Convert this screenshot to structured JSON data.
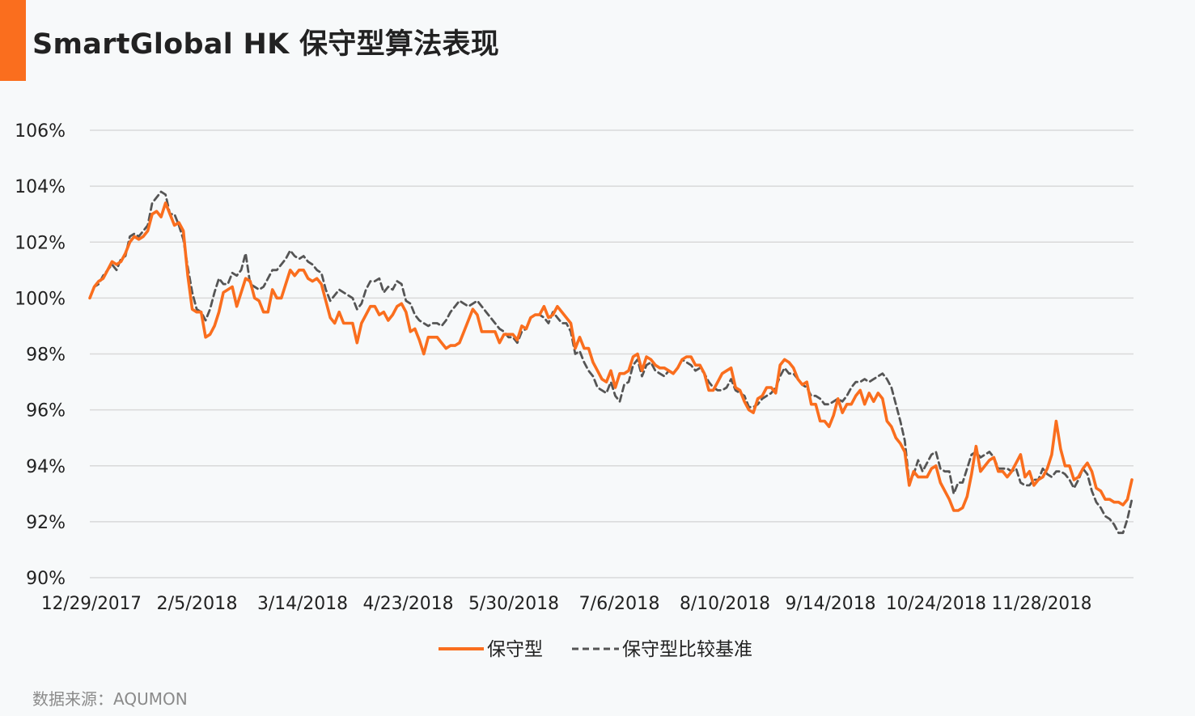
{
  "title": "SmartGlobal HK 保守型算法表现",
  "source": "数据来源：AQUMON",
  "colors": {
    "accent": "#fa6e1e",
    "primary": "#fa6e1e",
    "benchmark": "#555555",
    "grid": "#d9d9d9",
    "text": "#222222"
  },
  "chart_data": {
    "type": "line",
    "title": "SmartGlobal HK 保守型算法表现",
    "ylim": [
      90,
      106
    ],
    "y_ticks": [
      "106%",
      "104%",
      "102%",
      "100%",
      "98%",
      "96%",
      "94%",
      "92%",
      "90%"
    ],
    "x_ticks": [
      "12/29/2017",
      "2/5/2018",
      "3/14/2018",
      "4/23/2018",
      "5/30/2018",
      "7/6/2018",
      "8/10/2018",
      "9/14/2018",
      "10/24/2018",
      "11/28/2018"
    ],
    "grid": true,
    "legend_position": "bottom",
    "series": [
      {
        "name": "保守型",
        "style": "solid",
        "values": [
          100.0,
          100.4,
          100.6,
          100.7,
          101.0,
          101.3,
          101.2,
          101.3,
          101.6,
          102.0,
          102.2,
          102.1,
          102.2,
          102.4,
          103.0,
          103.1,
          102.9,
          103.4,
          103.0,
          102.6,
          102.7,
          102.4,
          100.8,
          99.6,
          99.5,
          99.5,
          98.6,
          98.7,
          99.0,
          99.5,
          100.2,
          100.3,
          100.4,
          99.7,
          100.2,
          100.7,
          100.6,
          100.0,
          99.9,
          99.5,
          99.5,
          100.3,
          100.0,
          100.0,
          100.5,
          101.0,
          100.8,
          101.0,
          101.0,
          100.7,
          100.6,
          100.7,
          100.5,
          99.9,
          99.3,
          99.1,
          99.5,
          99.1,
          99.1,
          99.1,
          98.4,
          99.1,
          99.4,
          99.7,
          99.7,
          99.4,
          99.5,
          99.2,
          99.4,
          99.7,
          99.8,
          99.5,
          98.8,
          98.9,
          98.5,
          98.0,
          98.6,
          98.6,
          98.6,
          98.4,
          98.2,
          98.3,
          98.3,
          98.4,
          98.8,
          99.2,
          99.6,
          99.4,
          98.8,
          98.8,
          98.8,
          98.8,
          98.4,
          98.7,
          98.7,
          98.7,
          98.5,
          99.0,
          98.9,
          99.3,
          99.4,
          99.4,
          99.7,
          99.3,
          99.4,
          99.7,
          99.5,
          99.3,
          99.1,
          98.2,
          98.6,
          98.2,
          98.2,
          97.7,
          97.4,
          97.1,
          97.0,
          97.4,
          96.8,
          97.3,
          97.3,
          97.4,
          97.9,
          98.0,
          97.4,
          97.9,
          97.8,
          97.6,
          97.5,
          97.5,
          97.4,
          97.3,
          97.5,
          97.8,
          97.9,
          97.9,
          97.6,
          97.6,
          97.3,
          96.7,
          96.7,
          97.0,
          97.3,
          97.4,
          97.5,
          96.8,
          96.7,
          96.3,
          96.0,
          95.9,
          96.4,
          96.5,
          96.8,
          96.8,
          96.6,
          97.6,
          97.8,
          97.7,
          97.5,
          97.1,
          96.9,
          97.0,
          96.2,
          96.2,
          95.6,
          95.6,
          95.4,
          95.8,
          96.4,
          95.9,
          96.2,
          96.2,
          96.5,
          96.7,
          96.2,
          96.6,
          96.3,
          96.6,
          96.4,
          95.6,
          95.4,
          95.0,
          94.8,
          94.5,
          93.3,
          93.8,
          93.6,
          93.6,
          93.6,
          93.9,
          94.0,
          93.4,
          93.1,
          92.8,
          92.4,
          92.4,
          92.5,
          92.9,
          93.7,
          94.7,
          93.8,
          94.0,
          94.2,
          94.3,
          93.8,
          93.8,
          93.6,
          93.8,
          94.1,
          94.4,
          93.6,
          93.8,
          93.3,
          93.5,
          93.6,
          93.9,
          94.4,
          95.6,
          94.6,
          94.0,
          94.0,
          93.5,
          93.6,
          93.9,
          94.1,
          93.8,
          93.2,
          93.1,
          92.8,
          92.8,
          92.7,
          92.7,
          92.6,
          92.8,
          93.5
        ]
      },
      {
        "name": "保守型比较基准",
        "style": "dashed",
        "values": [
          100.0,
          100.4,
          100.5,
          100.8,
          101.0,
          101.2,
          101.0,
          101.4,
          101.5,
          102.2,
          102.3,
          102.2,
          102.4,
          102.6,
          103.4,
          103.6,
          103.8,
          103.7,
          103.0,
          103.0,
          102.6,
          102.1,
          101.1,
          100.2,
          99.6,
          99.5,
          99.2,
          99.6,
          100.2,
          100.7,
          100.5,
          100.5,
          100.9,
          100.8,
          101.0,
          101.6,
          100.5,
          100.4,
          100.3,
          100.4,
          100.7,
          101.0,
          101.0,
          101.2,
          101.4,
          101.7,
          101.5,
          101.4,
          101.5,
          101.3,
          101.2,
          101.0,
          100.9,
          100.3,
          99.9,
          100.1,
          100.3,
          100.2,
          100.1,
          100.0,
          99.6,
          99.8,
          100.3,
          100.6,
          100.6,
          100.7,
          100.2,
          100.4,
          100.3,
          100.6,
          100.5,
          99.9,
          99.8,
          99.4,
          99.2,
          99.1,
          99.0,
          99.1,
          99.1,
          99.0,
          99.2,
          99.5,
          99.7,
          99.9,
          99.8,
          99.7,
          99.8,
          99.9,
          99.7,
          99.5,
          99.3,
          99.1,
          98.9,
          98.8,
          98.6,
          98.6,
          98.4,
          98.8,
          98.9,
          99.3,
          99.4,
          99.4,
          99.3,
          99.1,
          99.5,
          99.3,
          99.1,
          99.1,
          98.8,
          98.0,
          98.1,
          97.7,
          97.4,
          97.2,
          96.8,
          96.7,
          96.6,
          97.0,
          96.5,
          96.3,
          96.9,
          97.0,
          97.6,
          97.8,
          97.2,
          97.6,
          97.7,
          97.4,
          97.3,
          97.2,
          97.4,
          97.3,
          97.5,
          97.8,
          97.7,
          97.6,
          97.4,
          97.5,
          97.3,
          97.0,
          96.8,
          96.7,
          96.7,
          96.8,
          97.1,
          96.7,
          96.6,
          96.5,
          96.1,
          96.1,
          96.2,
          96.4,
          96.5,
          96.6,
          96.8,
          97.2,
          97.5,
          97.3,
          97.3,
          97.1,
          96.9,
          96.8,
          96.5,
          96.5,
          96.4,
          96.2,
          96.2,
          96.3,
          96.4,
          96.3,
          96.5,
          96.8,
          97.0,
          97.0,
          97.1,
          97.0,
          97.1,
          97.2,
          97.3,
          97.1,
          96.8,
          96.2,
          95.6,
          94.9,
          93.4,
          93.7,
          94.2,
          93.8,
          94.1,
          94.4,
          94.5,
          93.9,
          93.8,
          93.8,
          93.0,
          93.4,
          93.4,
          93.9,
          94.4,
          94.5,
          94.3,
          94.4,
          94.5,
          94.3,
          93.9,
          93.9,
          93.9,
          93.8,
          93.9,
          93.4,
          93.3,
          93.3,
          93.5,
          93.5,
          93.9,
          93.7,
          93.6,
          93.8,
          93.8,
          93.7,
          93.5,
          93.2,
          93.5,
          93.9,
          93.7,
          93.1,
          92.7,
          92.5,
          92.2,
          92.1,
          91.9,
          91.6,
          91.6,
          92.1,
          92.8
        ]
      }
    ]
  }
}
